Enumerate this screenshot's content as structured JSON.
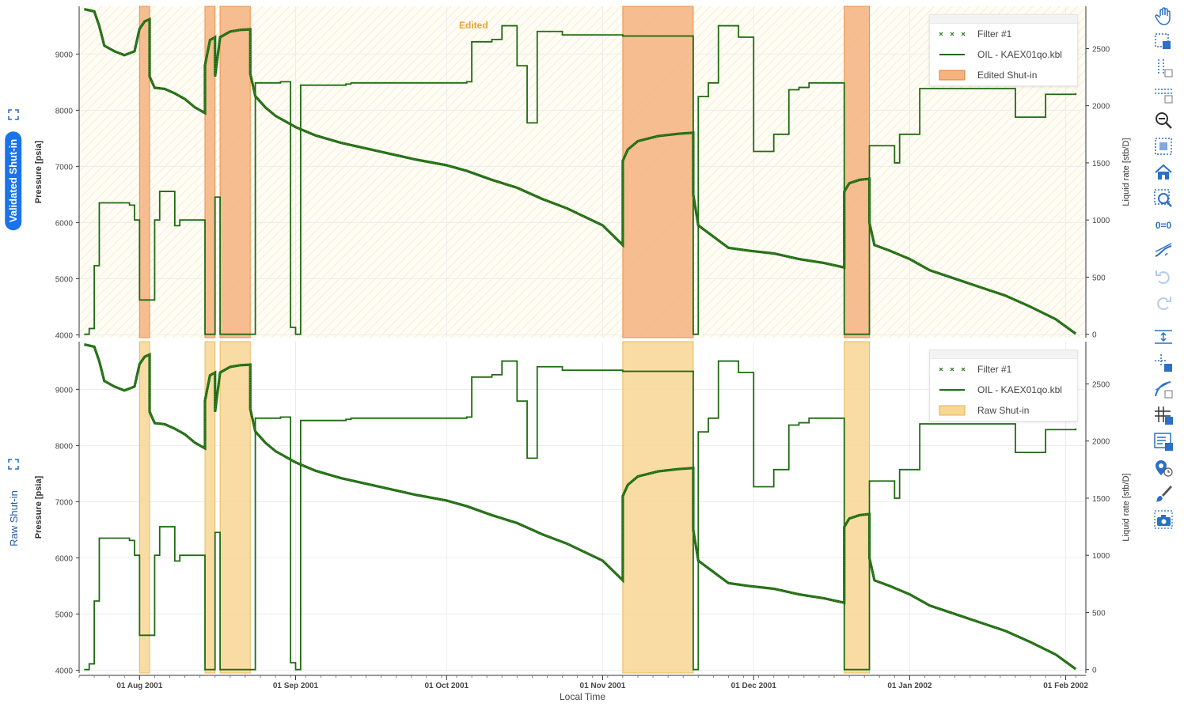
{
  "panels": [
    {
      "tab_label": "Validated Shut-in",
      "active": true,
      "y_left_label": "Pressure [psia]",
      "y_right_label": "Liquid rate [stb/D]",
      "legend": [
        {
          "label": "Filter #1",
          "kind": "marker"
        },
        {
          "label": "OIL - KAEX01qo.kbl",
          "kind": "line"
        },
        {
          "label": "Edited Shut-in",
          "kind": "patch"
        }
      ],
      "annotation": "Edited",
      "shade_color": "#f5b37f",
      "shade_edge": "#e27f30",
      "background_hatch": true
    },
    {
      "tab_label": "Raw Shut-in",
      "active": false,
      "y_left_label": "Pressure [psia]",
      "y_right_label": "Liquid rate [stb/D]",
      "legend": [
        {
          "label": "Filter #1",
          "kind": "marker"
        },
        {
          "label": "OIL - KAEX01qo.kbl",
          "kind": "line"
        },
        {
          "label": "Raw Shut-in",
          "kind": "patch"
        }
      ],
      "shade_color": "#f8d795",
      "shade_edge": "#e8b040",
      "background_hatch": false
    }
  ],
  "x_axis": {
    "title": "Local Time",
    "tick_labels": [
      "01 Aug 2001",
      "01 Sep 2001",
      "01 Oct 2001",
      "01 Nov 2001",
      "01 Dec 2001",
      "01 Jan 2002",
      "01 Feb 2002"
    ]
  },
  "colors": {
    "series": "#1f6b12",
    "grid": "#ececec",
    "tab_active": "#1a73e8",
    "toolbar": "#2a6fc9"
  },
  "toolbar_icons": [
    "pan-hand-icon",
    "box-select-icon",
    "x-range-select-icon",
    "y-range-select-icon",
    "zoom-out-icon",
    "box-zoom-icon",
    "home-icon",
    "zoom-region-icon",
    "equal-scale-icon",
    "curve-fit-icon",
    "undo-icon",
    "redo-icon",
    "separator",
    "axis-spacing-icon",
    "crosshair-select-icon",
    "tangent-icon",
    "grid-icon",
    "legend-toggle-icon",
    "marker-time-icon",
    "brush-icon",
    "camera-icon"
  ],
  "chart_data": {
    "type": "line",
    "x_range": [
      "2001-07-20",
      "2002-02-05"
    ],
    "y_left": {
      "label": "Pressure [psia]",
      "ticks": [
        4000,
        5000,
        6000,
        7000,
        8000,
        9000
      ],
      "range": [
        3950,
        9850
      ]
    },
    "y_right": {
      "label": "Liquid rate [stb/D]",
      "ticks": [
        0,
        500,
        1000,
        1500,
        2000,
        2500
      ],
      "range": [
        -30,
        2870
      ]
    },
    "shut_in_periods": [
      [
        "2001-08-01",
        "2001-08-03"
      ],
      [
        "2001-08-14",
        "2001-08-16"
      ],
      [
        "2001-08-17",
        "2001-08-23"
      ],
      [
        "2001-11-05",
        "2001-11-19"
      ],
      [
        "2001-12-19",
        "2001-12-24"
      ]
    ],
    "series": [
      {
        "name": "Filter #1",
        "axis": "left",
        "x": [
          "2001-07-21",
          "2001-07-23",
          "2001-07-24",
          "2001-07-25",
          "2001-07-27",
          "2001-07-29",
          "2001-07-31",
          "2001-08-01",
          "2001-08-02",
          "2001-08-03",
          "2001-08-03",
          "2001-08-04",
          "2001-08-06",
          "2001-08-08",
          "2001-08-10",
          "2001-08-12",
          "2001-08-14",
          "2001-08-14",
          "2001-08-15",
          "2001-08-16",
          "2001-08-16",
          "2001-08-17",
          "2001-08-19",
          "2001-08-21",
          "2001-08-23",
          "2001-08-23",
          "2001-08-24",
          "2001-08-26",
          "2001-08-28",
          "2001-09-01",
          "2001-09-05",
          "2001-09-10",
          "2001-09-15",
          "2001-09-20",
          "2001-09-25",
          "2001-10-01",
          "2001-10-05",
          "2001-10-10",
          "2001-10-15",
          "2001-10-20",
          "2001-10-25",
          "2001-11-01",
          "2001-11-05",
          "2001-11-05",
          "2001-11-06",
          "2001-11-08",
          "2001-11-12",
          "2001-11-16",
          "2001-11-19",
          "2001-11-19",
          "2001-11-20",
          "2001-11-23",
          "2001-11-26",
          "2001-11-30",
          "2001-12-05",
          "2001-12-10",
          "2001-12-15",
          "2001-12-19",
          "2001-12-19",
          "2001-12-20",
          "2001-12-22",
          "2001-12-24",
          "2001-12-24",
          "2001-12-25",
          "2001-12-28",
          "2002-01-01",
          "2002-01-05",
          "2002-01-10",
          "2002-01-15",
          "2002-01-20",
          "2002-01-25",
          "2002-01-30",
          "2002-02-03"
        ],
        "y": [
          9800,
          9760,
          9500,
          9150,
          9050,
          8980,
          9050,
          9450,
          9580,
          9620,
          8600,
          8400,
          8380,
          8300,
          8200,
          8050,
          7950,
          8800,
          9250,
          9300,
          8600,
          9300,
          9400,
          9430,
          9440,
          8650,
          8250,
          8050,
          7900,
          7700,
          7550,
          7420,
          7320,
          7220,
          7120,
          7020,
          6920,
          6760,
          6620,
          6420,
          6250,
          5950,
          5600,
          7100,
          7300,
          7450,
          7540,
          7580,
          7600,
          6500,
          5950,
          5750,
          5550,
          5500,
          5450,
          5350,
          5280,
          5200,
          6550,
          6700,
          6760,
          6780,
          6000,
          5600,
          5500,
          5350,
          5150,
          5000,
          4850,
          4700,
          4500,
          4280,
          4020
        ],
        "marker": "x"
      },
      {
        "name": "OIL - KAEX01qo.kbl",
        "axis": "right",
        "x": [
          "2001-07-21",
          "2001-07-22",
          "2001-07-23",
          "2001-07-24",
          "2001-07-30",
          "2001-07-31",
          "2001-08-01",
          "2001-08-03",
          "2001-08-04",
          "2001-08-05",
          "2001-08-06",
          "2001-08-08",
          "2001-08-09",
          "2001-08-14",
          "2001-08-16",
          "2001-08-17",
          "2001-08-23",
          "2001-08-24",
          "2001-08-28",
          "2001-08-29",
          "2001-08-31",
          "2001-09-01",
          "2001-09-02",
          "2001-09-11",
          "2001-09-12",
          "2001-10-05",
          "2001-10-06",
          "2001-10-10",
          "2001-10-12",
          "2001-10-15",
          "2001-10-17",
          "2001-10-19",
          "2001-10-21",
          "2001-10-24",
          "2001-11-05",
          "2001-11-19",
          "2001-11-20",
          "2001-11-22",
          "2001-11-24",
          "2001-11-26",
          "2001-11-28",
          "2001-12-01",
          "2001-12-05",
          "2001-12-08",
          "2001-12-10",
          "2001-12-12",
          "2001-12-14",
          "2001-12-16",
          "2001-12-19",
          "2001-12-24",
          "2001-12-26",
          "2001-12-29",
          "2001-12-30",
          "2002-01-03",
          "2002-01-07",
          "2002-01-10",
          "2002-01-14",
          "2002-01-18",
          "2002-01-22",
          "2002-01-28",
          "2002-01-31",
          "2002-02-03"
        ],
        "y": [
          0,
          50,
          600,
          1150,
          1130,
          1000,
          300,
          300,
          1000,
          1250,
          1250,
          950,
          1000,
          0,
          1200,
          0,
          0,
          2200,
          2200,
          2210,
          60,
          0,
          2180,
          2190,
          2200,
          2210,
          2560,
          2580,
          2700,
          2350,
          1850,
          2650,
          2650,
          2620,
          2610,
          0,
          2080,
          2200,
          2700,
          2700,
          2600,
          1600,
          1750,
          2140,
          2160,
          2200,
          2200,
          2200,
          0,
          1650,
          1650,
          1500,
          1750,
          2150,
          2150,
          2150,
          2150,
          2150,
          1900,
          2100,
          2100,
          2110
        ],
        "step": true
      }
    ]
  }
}
